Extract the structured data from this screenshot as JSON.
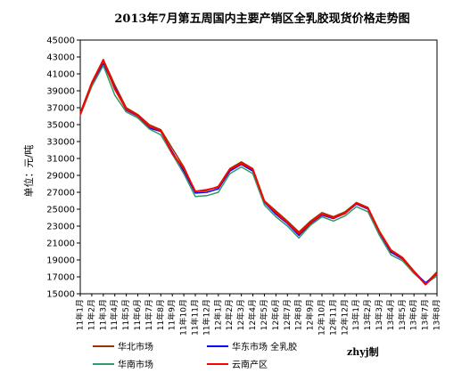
{
  "chart_data": {
    "type": "line",
    "title": "2013年7月第五周国内主要产销区全乳胶现货价格走势图",
    "ylabel": "单位：元/吨",
    "ylim": [
      15000,
      45000
    ],
    "yticks": [
      45000,
      43000,
      41000,
      39000,
      37000,
      35000,
      33000,
      31000,
      29000,
      27000,
      25000,
      23000,
      21000,
      19000,
      17000,
      15000
    ],
    "ytick_labels": [
      "45000",
      "43000",
      "41000",
      "39000",
      "37000",
      "35000",
      "33000",
      "31000",
      "29000",
      "27000",
      "25000",
      "23000",
      "21000",
      "19000",
      "17000",
      "15000"
    ],
    "categories": [
      "11年1月",
      "11年2月",
      "11年3月",
      "11年4月",
      "11年5月",
      "11年6月",
      "11年7月",
      "11年8月",
      "11年9月",
      "11年10月",
      "11年11月",
      "11年12月",
      "12年1月",
      "12年2月",
      "12年3月",
      "12年4月",
      "12年5月",
      "12年6月",
      "12年7月",
      "12年8月",
      "12年9月",
      "12年10月",
      "12年11月",
      "12年12月",
      "13年1月",
      "13年2月",
      "13年3月",
      "13年4月",
      "13年5月",
      "13年6月",
      "13年7月",
      "13年8月"
    ],
    "grid": false,
    "legend_position": "bottom",
    "series": [
      {
        "name": "华北市场",
        "color": "#993300",
        "values": [
          36400,
          40000,
          42700,
          39700,
          37000,
          36200,
          35000,
          34400,
          32200,
          30000,
          27100,
          27200,
          27700,
          29800,
          30600,
          29800,
          26000,
          24800,
          23600,
          22300,
          23600,
          24600,
          24100,
          24700,
          25800,
          25200,
          22400,
          20200,
          19300,
          17700,
          16200,
          17600
        ]
      },
      {
        "name": "华东市场 全乳胶",
        "color": "#0000ff",
        "values": [
          36300,
          39800,
          42200,
          39400,
          36700,
          36000,
          34600,
          34200,
          31800,
          29500,
          26900,
          27000,
          27400,
          29500,
          30300,
          29500,
          25800,
          24400,
          23300,
          21900,
          23300,
          24300,
          23900,
          24500,
          25600,
          25000,
          22200,
          19900,
          19100,
          17600,
          16300,
          17300
        ]
      },
      {
        "name": "华南市场",
        "color": "#339966",
        "values": [
          36100,
          39500,
          42000,
          38500,
          36500,
          35800,
          34500,
          33800,
          31500,
          29200,
          26500,
          26600,
          27000,
          29200,
          30000,
          29200,
          25500,
          24100,
          23000,
          21600,
          23100,
          24100,
          23600,
          24200,
          25300,
          24700,
          21900,
          19600,
          18900,
          17400,
          16200,
          17100
        ]
      },
      {
        "name": "云南产区",
        "color": "#ff0000",
        "values": [
          36200,
          39900,
          42600,
          39200,
          36800,
          36100,
          34800,
          34300,
          31600,
          29800,
          27100,
          27300,
          27600,
          29700,
          30400,
          29700,
          25900,
          24600,
          23400,
          22100,
          23400,
          24400,
          24000,
          24500,
          25700,
          25100,
          22300,
          20100,
          19200,
          17600,
          16100,
          17400
        ]
      }
    ],
    "watermark": "zhyj制"
  }
}
